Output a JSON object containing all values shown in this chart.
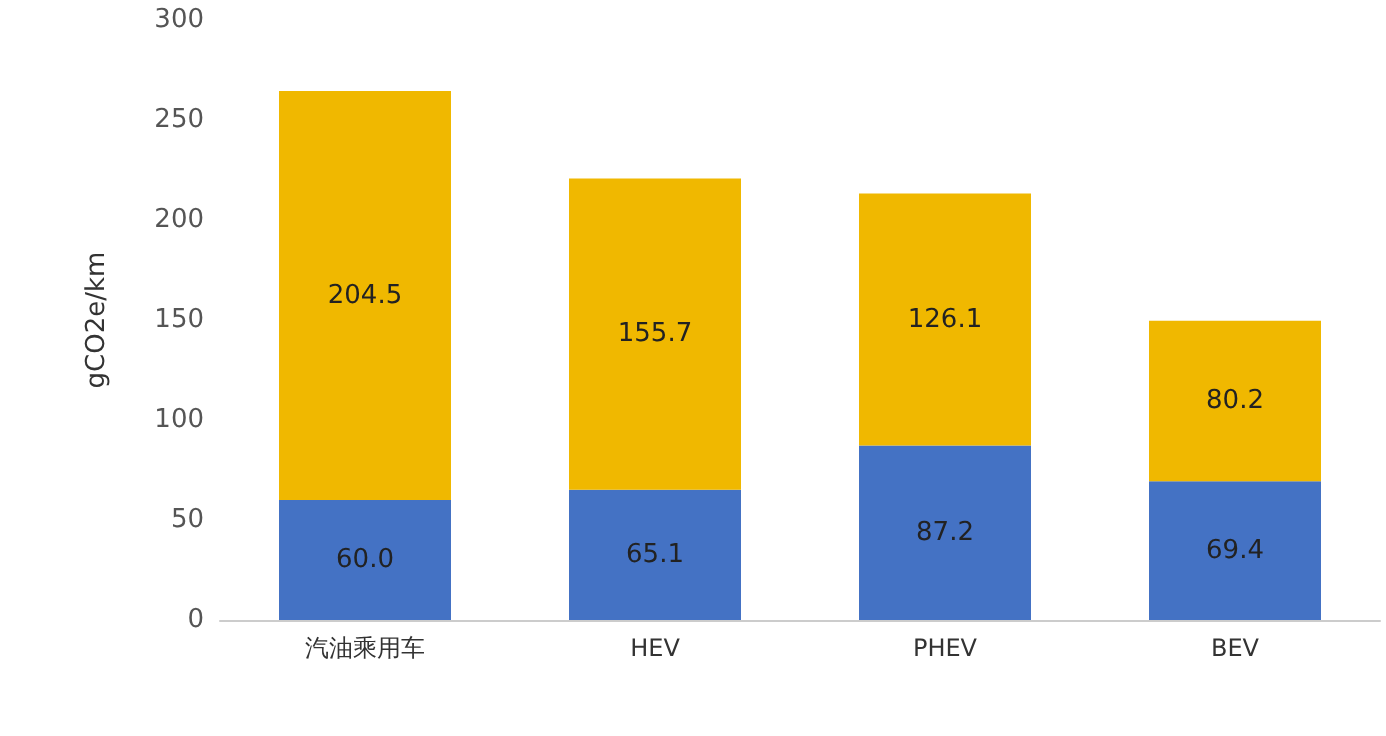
{
  "chart_data": {
    "type": "bar",
    "stacked": true,
    "ylabel": "gCO2e/km",
    "categories": [
      "汽油乘用车",
      "HEV",
      "PHEV",
      "BEV"
    ],
    "series": [
      {
        "color": "#4472c4",
        "values": [
          60.0,
          65.1,
          87.2,
          69.4
        ],
        "value_labels": [
          "60.0",
          "65.1",
          "87.2",
          "69.4"
        ]
      },
      {
        "color": "#f0b800",
        "values": [
          204.5,
          155.7,
          126.1,
          80.2
        ],
        "value_labels": [
          "204.5",
          "155.7",
          "126.1",
          "80.2"
        ]
      }
    ],
    "ylim": [
      0,
      300
    ],
    "yticks": [
      0,
      50,
      100,
      150,
      200,
      250,
      300
    ],
    "grid": false
  }
}
